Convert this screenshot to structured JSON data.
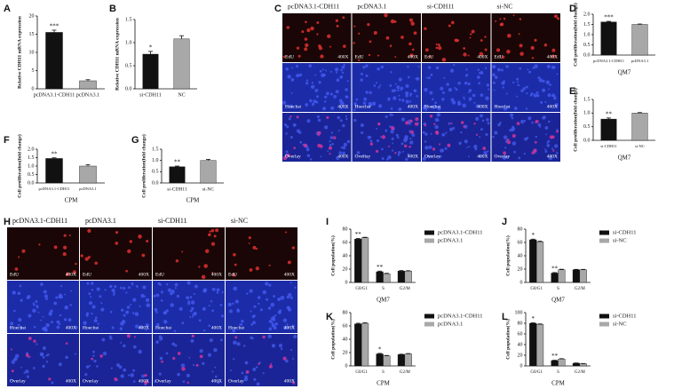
{
  "chart_data": [
    {
      "type": "bar",
      "panel": "A",
      "ylabel": "Relative CDH11 mRNA expression",
      "categories": [
        "pcDNA3.1-CDH11",
        "pcDNA3.1"
      ],
      "values": [
        15.5,
        2.2
      ],
      "errors": [
        0.6,
        0.3
      ],
      "colors": [
        "#111111",
        "#a8a8a8"
      ],
      "significance": [
        "***",
        null
      ],
      "ylim": [
        0,
        20
      ],
      "yticks": [
        0,
        5,
        10,
        15,
        20
      ]
    },
    {
      "type": "bar",
      "panel": "B",
      "ylabel": "Relative CDH11 mRNA expression",
      "categories": [
        "si-CDH11",
        "NC"
      ],
      "values": [
        0.75,
        1.08
      ],
      "errors": [
        0.06,
        0.07
      ],
      "colors": [
        "#111111",
        "#a8a8a8"
      ],
      "significance": [
        "*",
        null
      ],
      "ylim": [
        0,
        1.5
      ],
      "yticks": [
        {
          "value": 0,
          "label": "0.0"
        },
        0.5,
        {
          "value": 1,
          "label": "1.0"
        },
        1.5
      ]
    },
    {
      "type": "bar",
      "panel": "D",
      "ylabel": "Cell proliferation(fold change)",
      "xlabel": "QM7",
      "categories": [
        "pcDNA3.1-CDH11",
        "pcDNA3.1"
      ],
      "values": [
        1.62,
        1.5
      ],
      "errors": [
        0.03,
        0.02
      ],
      "colors": [
        "#111111",
        "#a8a8a8"
      ],
      "significance": [
        "***",
        null
      ],
      "ylim": [
        0,
        2
      ],
      "yticks": [
        {
          "value": 0,
          "label": "0.0"
        },
        0.5,
        {
          "value": 1,
          "label": "1.0"
        },
        1.5,
        {
          "value": 2,
          "label": "2.0"
        }
      ]
    },
    {
      "type": "bar",
      "panel": "E",
      "ylabel": "Cell proliferation(fold change)",
      "xlabel": "QM7",
      "categories": [
        "si-CDH11",
        "si-NC"
      ],
      "values": [
        0.78,
        1.0
      ],
      "errors": [
        0.04,
        0.02
      ],
      "colors": [
        "#111111",
        "#a8a8a8"
      ],
      "significance": [
        "**",
        null
      ],
      "ylim": [
        0,
        1.5
      ],
      "yticks": [
        {
          "value": 0,
          "label": "0.0"
        },
        0.5,
        {
          "value": 1,
          "label": "1.0"
        },
        1.5
      ]
    },
    {
      "type": "bar",
      "panel": "F",
      "ylabel": "Cell proliferation(fold change)",
      "xlabel": "CPM",
      "categories": [
        "pcDNA3.1-CDH11",
        "pcDNA3.1"
      ],
      "values": [
        1.45,
        1.0
      ],
      "errors": [
        0.04,
        0.08
      ],
      "colors": [
        "#111111",
        "#a8a8a8"
      ],
      "significance": [
        "**",
        null
      ],
      "ylim": [
        0,
        2
      ],
      "yticks": [
        {
          "value": 0,
          "label": "0.0"
        },
        0.5,
        {
          "value": 1,
          "label": "1.0"
        },
        1.5,
        {
          "value": 2,
          "label": "2.0"
        }
      ]
    },
    {
      "type": "bar",
      "panel": "G",
      "ylabel": "Cell proliferation(fold change)",
      "xlabel": "CPM",
      "categories": [
        "si-CDH11",
        "si-NC"
      ],
      "values": [
        0.72,
        1.0
      ],
      "errors": [
        0.03,
        0.05
      ],
      "colors": [
        "#111111",
        "#a8a8a8"
      ],
      "significance": [
        "**",
        null
      ],
      "ylim": [
        0,
        1.5
      ],
      "yticks": [
        {
          "value": 0,
          "label": "0.0"
        },
        0.5,
        {
          "value": 1,
          "label": "1.0"
        },
        1.5
      ]
    },
    {
      "type": "bar",
      "panel": "I",
      "ylabel": "Cell population(%)",
      "xlabel": "QM7",
      "categories": [
        "G0/G1",
        "S",
        "G2/M"
      ],
      "significance": [
        "**",
        "**",
        null
      ],
      "series": [
        {
          "name": "pcDNA3.1-CDH11",
          "color": "#111111",
          "values": [
            65,
            16,
            17
          ],
          "errors": [
            1,
            1,
            0.8
          ]
        },
        {
          "name": "pcDNA3.1",
          "color": "#a8a8a8",
          "values": [
            67,
            13,
            17
          ],
          "errors": [
            0.8,
            0.7,
            0.6
          ]
        }
      ],
      "ylim": [
        0,
        80
      ],
      "yticks": [
        0,
        20,
        40,
        60,
        80
      ]
    },
    {
      "type": "bar",
      "panel": "J",
      "ylabel": "Cell population(%)",
      "xlabel": "QM7",
      "categories": [
        "G0/G1",
        "S",
        "G2/M"
      ],
      "significance": [
        "*",
        "**",
        null
      ],
      "series": [
        {
          "name": "si-CDH11",
          "color": "#111111",
          "values": [
            64,
            14,
            19
          ],
          "errors": [
            1,
            0.8,
            0.6
          ]
        },
        {
          "name": "si-NC",
          "color": "#a8a8a8",
          "values": [
            61,
            19,
            19
          ],
          "errors": [
            1,
            0.8,
            0.6
          ]
        }
      ],
      "ylim": [
        0,
        80
      ],
      "yticks": [
        0,
        20,
        40,
        60,
        80
      ]
    },
    {
      "type": "bar",
      "panel": "K",
      "ylabel": "Cell population(%)",
      "xlabel": "CPM",
      "categories": [
        "G0/G1",
        "S",
        "G2/M"
      ],
      "significance": [
        null,
        "*",
        null
      ],
      "series": [
        {
          "name": "pcDNA3.1-CDH11",
          "color": "#111111",
          "values": [
            63,
            18,
            17
          ],
          "errors": [
            1,
            0.8,
            0.6
          ]
        },
        {
          "name": "pcDNA3.1",
          "color": "#a8a8a8",
          "values": [
            64,
            15,
            18
          ],
          "errors": [
            0.8,
            0.7,
            0.6
          ]
        }
      ],
      "ylim": [
        0,
        80
      ],
      "yticks": [
        0,
        20,
        40,
        60,
        80
      ]
    },
    {
      "type": "bar",
      "panel": "L",
      "ylabel": "Cell population(%)",
      "xlabel": "CPM",
      "categories": [
        "G0/G1",
        "S",
        "G2/M"
      ],
      "significance": [
        "*",
        "**",
        null
      ],
      "series": [
        {
          "name": "si-CDH11",
          "color": "#111111",
          "values": [
            80,
            10,
            5
          ],
          "errors": [
            0.8,
            0.6,
            0.5
          ]
        },
        {
          "name": "si-NC",
          "color": "#a8a8a8",
          "values": [
            78,
            13,
            4
          ],
          "errors": [
            0.8,
            0.6,
            0.5
          ]
        }
      ],
      "ylim": [
        0,
        100
      ],
      "yticks": [
        0,
        20,
        40,
        60,
        80,
        100
      ]
    }
  ],
  "image_panels": [
    {
      "panel": "C",
      "columns": [
        "pcDNA3.1-CDH11",
        "pcDNA3.1",
        "si-CDH11",
        "si-NC"
      ],
      "rows": [
        "EdU",
        "Hoechst",
        "Overlay"
      ],
      "magnification": "400X"
    },
    {
      "panel": "H",
      "columns": [
        "pcDNA3.1-CDH11",
        "pcDNA3.1",
        "si-CDH11",
        "si-NC"
      ],
      "rows": [
        "EdU",
        "Hoechst",
        "Overlay"
      ],
      "magnification": "400X"
    }
  ]
}
